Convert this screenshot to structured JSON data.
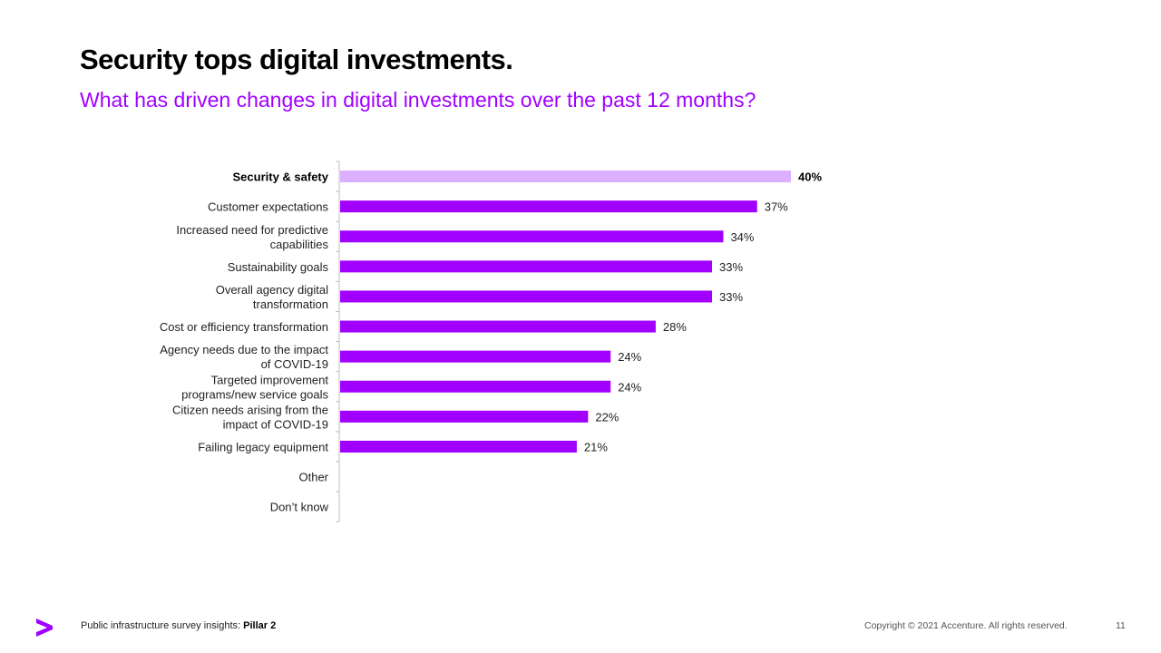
{
  "header": {
    "title": "Security tops digital investments.",
    "subtitle": "What has driven changes in digital investments over the past 12 months?"
  },
  "chart_data": {
    "type": "bar",
    "orientation": "horizontal",
    "title": "What has driven changes in digital investments over the past 12 months?",
    "xlabel": "",
    "ylabel": "",
    "xlim": [
      0,
      40
    ],
    "grid": false,
    "legend": "none",
    "unit": "%",
    "categories": [
      [
        "Security & safety"
      ],
      [
        "Customer expectations"
      ],
      [
        "Increased need for predictive",
        "capabilities"
      ],
      [
        "Sustainability goals"
      ],
      [
        "Overall agency digital",
        "transformation"
      ],
      [
        "Cost or efficiency transformation"
      ],
      [
        "Agency needs due to the impact",
        "of COVID-19"
      ],
      [
        "Targeted improvement",
        "programs/new service goals"
      ],
      [
        "Citizen needs arising from the",
        "impact of COVID-19"
      ],
      [
        "Failing legacy equipment"
      ],
      [
        "Other"
      ],
      [
        "Don’t know"
      ]
    ],
    "values": [
      40,
      37,
      34,
      33,
      33,
      28,
      24,
      24,
      22,
      21,
      null,
      null
    ],
    "value_labels": [
      "40%",
      "37%",
      "34%",
      "33%",
      "33%",
      "28%",
      "24%",
      "24%",
      "22%",
      "21%",
      "",
      ""
    ],
    "highlight_index": 0,
    "colors": {
      "bar": "#a100ff",
      "highlight_bar": "#dcafff",
      "axis": "#bdbdbd"
    }
  },
  "footer": {
    "logo_icon": "accenture-chevron-icon",
    "logo_color": "#a100ff",
    "deck_label": "Public infrastructure survey insights: ",
    "deck_label_bold": "Pillar 2",
    "copyright": "Copyright © 2021 Accenture. All rights reserved.",
    "page_number": "11"
  }
}
